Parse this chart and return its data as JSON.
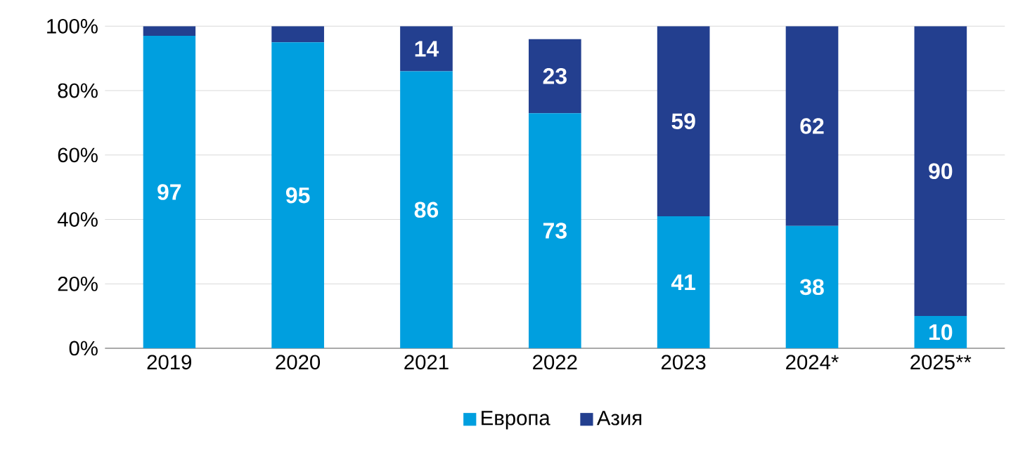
{
  "chart_data": {
    "type": "bar",
    "stacked": true,
    "categories": [
      "2019",
      "2020",
      "2021",
      "2022",
      "2023",
      "2024*",
      "2025**"
    ],
    "series": [
      {
        "name": "Европа",
        "color": "#009fdf",
        "values": [
          97,
          95,
          86,
          73,
          41,
          38,
          10
        ],
        "value_labels": [
          "97",
          "95",
          "86",
          "73",
          "41",
          "38",
          "10"
        ]
      },
      {
        "name": "Азия",
        "color": "#233f8f",
        "values": [
          3,
          5,
          14,
          23,
          59,
          62,
          90
        ],
        "value_labels": [
          null,
          null,
          "14",
          "23",
          "59",
          "62",
          "90"
        ]
      }
    ],
    "ylim": [
      0,
      100
    ],
    "yticks": [
      {
        "value": 0,
        "label": "0%"
      },
      {
        "value": 20,
        "label": "20%"
      },
      {
        "value": 40,
        "label": "40%"
      },
      {
        "value": 60,
        "label": "60%"
      },
      {
        "value": 80,
        "label": "80%"
      },
      {
        "value": 100,
        "label": "100%"
      }
    ],
    "grid": "y",
    "legend": "bottom"
  }
}
